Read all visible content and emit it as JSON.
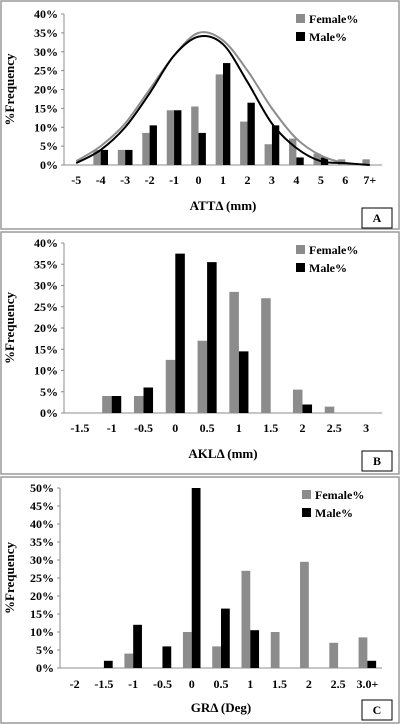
{
  "chart_data": [
    {
      "type": "bar",
      "panel_label": "A",
      "xlabel": "ATTΔ  (mm)",
      "ylabel": "%Frequency",
      "ylim": [
        0,
        40
      ],
      "yticks": [
        "0%",
        "5%",
        "10%",
        "15%",
        "20%",
        "25%",
        "30%",
        "35%",
        "40%"
      ],
      "categories": [
        "-5",
        "-4",
        "-3",
        "-2",
        "-1",
        "0",
        "1",
        "2",
        "3",
        "4",
        "5",
        "6",
        "7+"
      ],
      "legend_position": "top-right",
      "series": [
        {
          "name": "Female%",
          "color": "#8c8c8c",
          "values": [
            0,
            4,
            4,
            8.5,
            14.5,
            15.5,
            24,
            11.5,
            5.5,
            7,
            3,
            1.5,
            1.5
          ]
        },
        {
          "name": "Male%",
          "color": "#000000",
          "values": [
            0,
            4,
            4,
            10.5,
            14.5,
            8.5,
            27,
            16.5,
            10.5,
            2,
            2,
            0,
            0
          ]
        }
      ],
      "curves": [
        {
          "series": "Female%",
          "color": "#8c8c8c",
          "values": [
            1,
            5,
            11,
            20,
            29,
            35,
            33,
            25,
            15,
            7,
            2.5,
            0.5,
            0
          ]
        },
        {
          "series": "Male%",
          "color": "#000000",
          "values": [
            0.5,
            4,
            10,
            19,
            29,
            34,
            32,
            22,
            11,
            4.5,
            1,
            0.5,
            0
          ]
        }
      ]
    },
    {
      "type": "bar",
      "panel_label": "B",
      "xlabel": "AKLΔ  (mm)",
      "ylabel": "%Frequency",
      "ylim": [
        0,
        40
      ],
      "yticks": [
        "0%",
        "5%",
        "10%",
        "15%",
        "20%",
        "25%",
        "30%",
        "35%",
        "40%"
      ],
      "categories": [
        "-1.5",
        "-1",
        "-0.5",
        "0",
        "0.5",
        "1",
        "1.5",
        "2",
        "2.5",
        "3"
      ],
      "legend_position": "top-right",
      "series": [
        {
          "name": "Female%",
          "color": "#8c8c8c",
          "values": [
            0,
            4,
            4,
            12.5,
            17,
            28.5,
            27,
            5.5,
            1.5,
            0
          ]
        },
        {
          "name": "Male%",
          "color": "#000000",
          "values": [
            0,
            4,
            6,
            37.5,
            35.5,
            14.5,
            0,
            2,
            0,
            0
          ]
        }
      ]
    },
    {
      "type": "bar",
      "panel_label": "C",
      "xlabel": "GRΔ (Deg)",
      "ylabel": "%Frequency",
      "ylim": [
        0,
        50
      ],
      "yticks": [
        "0%",
        "5%",
        "10%",
        "15%",
        "20%",
        "25%",
        "30%",
        "35%",
        "40%",
        "45%",
        "50%"
      ],
      "categories": [
        "-2",
        "-1.5",
        "-1",
        "-0.5",
        "0",
        "0.5",
        "1",
        "1.5",
        "2",
        "2.5",
        "3.0+"
      ],
      "legend_position": "top-right",
      "series": [
        {
          "name": "Female%",
          "color": "#8c8c8c",
          "values": [
            0,
            0,
            4,
            0,
            10,
            6,
            27,
            10,
            29.5,
            7,
            8.5
          ]
        },
        {
          "name": "Male%",
          "color": "#000000",
          "values": [
            0,
            2,
            12,
            6,
            50,
            16.5,
            10.5,
            0,
            0,
            0,
            2
          ]
        }
      ]
    }
  ]
}
